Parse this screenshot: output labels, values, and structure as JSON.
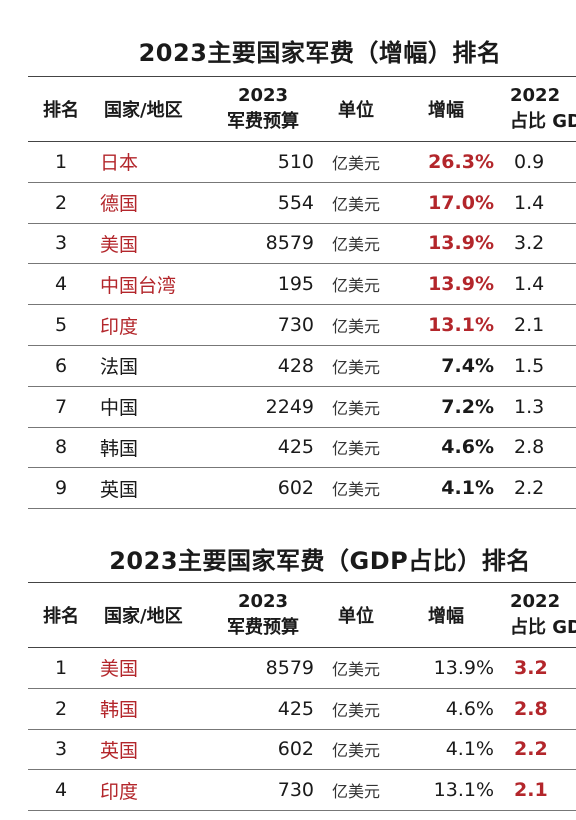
{
  "colors": {
    "highlight": "#b3262b",
    "text": "#1a1a1a",
    "rule": "#777777"
  },
  "table1": {
    "title": "2023主要国家军费（增幅）排名",
    "headers": {
      "rank": "排名",
      "name": "国家/地区",
      "budget_line1": "2023",
      "budget_line2": "军费预算",
      "unit": "单位",
      "increase": "增幅",
      "gdp_line1": "2022",
      "gdp_line2": "占比 GD"
    },
    "rows": [
      {
        "rank": "1",
        "name": "日本",
        "budget": "510",
        "unit": "亿美元",
        "increase": "26.3%",
        "gdp": "0.9"
      },
      {
        "rank": "2",
        "name": "德国",
        "budget": "554",
        "unit": "亿美元",
        "increase": "17.0%",
        "gdp": "1.4"
      },
      {
        "rank": "3",
        "name": "美国",
        "budget": "8579",
        "unit": "亿美元",
        "increase": "13.9%",
        "gdp": "3.2"
      },
      {
        "rank": "4",
        "name": "中国台湾",
        "budget": "195",
        "unit": "亿美元",
        "increase": "13.9%",
        "gdp": "1.4"
      },
      {
        "rank": "5",
        "name": "印度",
        "budget": "730",
        "unit": "亿美元",
        "increase": "13.1%",
        "gdp": "2.1"
      },
      {
        "rank": "6",
        "name": "法国",
        "budget": "428",
        "unit": "亿美元",
        "increase": "7.4%",
        "gdp": "1.5"
      },
      {
        "rank": "7",
        "name": "中国",
        "budget": "2249",
        "unit": "亿美元",
        "increase": "7.2%",
        "gdp": "1.3"
      },
      {
        "rank": "8",
        "name": "韩国",
        "budget": "425",
        "unit": "亿美元",
        "increase": "4.6%",
        "gdp": "2.8"
      },
      {
        "rank": "9",
        "name": "英国",
        "budget": "602",
        "unit": "亿美元",
        "increase": "4.1%",
        "gdp": "2.2"
      }
    ]
  },
  "table2": {
    "title": "2023主要国家军费（GDP占比）排名",
    "headers": {
      "rank": "排名",
      "name": "国家/地区",
      "budget_line1": "2023",
      "budget_line2": "军费预算",
      "unit": "单位",
      "increase": "增幅",
      "gdp_line1": "2022",
      "gdp_line2": "占比 GD"
    },
    "rows": [
      {
        "rank": "1",
        "name": "美国",
        "budget": "8579",
        "unit": "亿美元",
        "increase": "13.9%",
        "gdp": "3.2"
      },
      {
        "rank": "2",
        "name": "韩国",
        "budget": "425",
        "unit": "亿美元",
        "increase": "4.6%",
        "gdp": "2.8"
      },
      {
        "rank": "3",
        "name": "英国",
        "budget": "602",
        "unit": "亿美元",
        "increase": "4.1%",
        "gdp": "2.2"
      },
      {
        "rank": "4",
        "name": "印度",
        "budget": "730",
        "unit": "亿美元",
        "increase": "13.1%",
        "gdp": "2.1"
      }
    ]
  }
}
